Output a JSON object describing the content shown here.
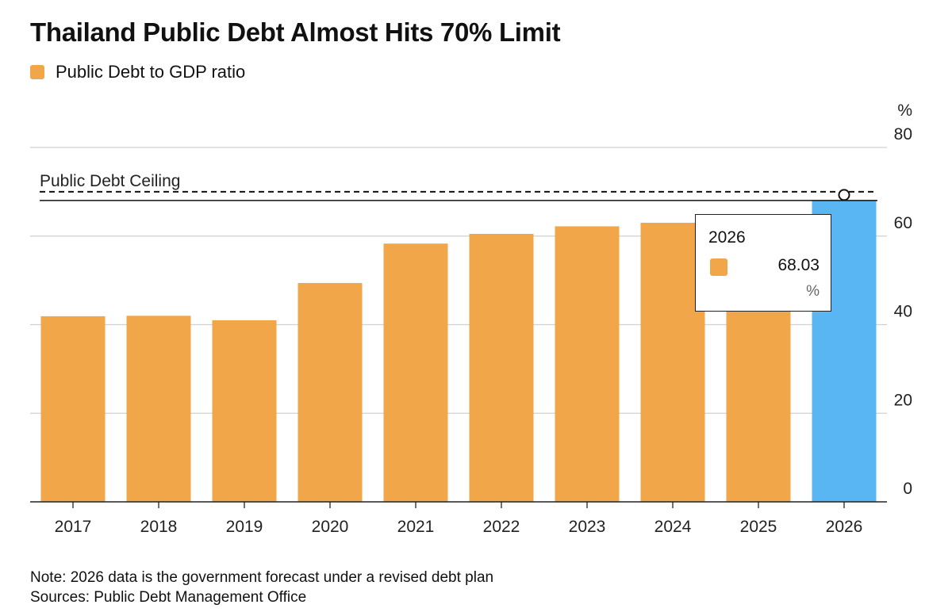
{
  "title": "Thailand Public Debt Almost Hits 70% Limit",
  "legend": {
    "label": "Public Debt to GDP ratio",
    "color": "#F0A649"
  },
  "ceiling_label": "Public Debt Ceiling",
  "tooltip": {
    "year": "2026",
    "value": "68.03",
    "unit": "%"
  },
  "note": "Note: 2026 data is the government forecast under a revised debt plan",
  "sources": "Sources: Public Debt Management Office",
  "chart_data": {
    "type": "bar",
    "title": "Thailand Public Debt Almost Hits 70% Limit",
    "categories": [
      "2017",
      "2018",
      "2019",
      "2020",
      "2021",
      "2022",
      "2023",
      "2024",
      "2025",
      "2026"
    ],
    "series": [
      {
        "name": "Public Debt to GDP ratio",
        "values": [
          41.9,
          42.0,
          41.0,
          49.4,
          58.3,
          60.5,
          62.2,
          63.0,
          64.0,
          68.03
        ]
      }
    ],
    "colors": {
      "bar": "#F0A649",
      "highlight": "#5AB6F2",
      "highlight_category": "2026"
    },
    "ylabel": "%",
    "ylim": [
      0,
      80
    ],
    "yticks": [
      0,
      20,
      40,
      60,
      80
    ],
    "reference_line": {
      "label": "Public Debt Ceiling",
      "value": 70,
      "style": "dashed"
    },
    "grid": true,
    "y_axis_side": "right",
    "legend_position": "top-left"
  }
}
